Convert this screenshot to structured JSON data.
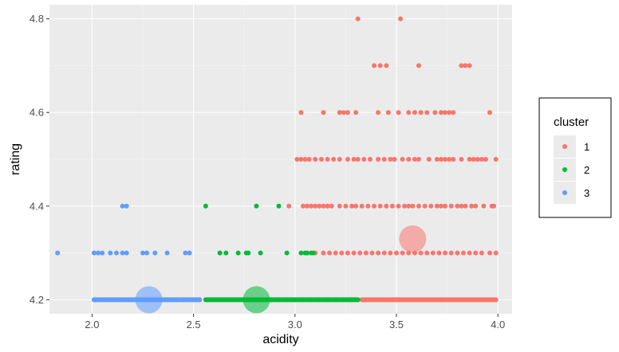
{
  "chart_data": {
    "type": "scatter",
    "xlabel": "acidity",
    "ylabel": "rating",
    "xlim": [
      1.79,
      4.07
    ],
    "ylim": [
      4.17,
      4.83
    ],
    "xticks": [
      "2.0",
      "2.5",
      "3.0",
      "3.5",
      "4.0"
    ],
    "yticks": [
      "4.2",
      "4.4",
      "4.6",
      "4.8"
    ],
    "grid": true,
    "legend": {
      "title": "cluster",
      "position": "right",
      "entries": [
        {
          "label": "1",
          "color": "#F8766D"
        },
        {
          "label": "2",
          "color": "#00BA38"
        },
        {
          "label": "3",
          "color": "#619CFF"
        }
      ]
    },
    "series": [
      {
        "name": "1",
        "color": "#F8766D",
        "points": [
          [
            3.31,
            4.8
          ],
          [
            3.52,
            4.8
          ],
          [
            3.39,
            4.7
          ],
          [
            3.42,
            4.7
          ],
          [
            3.45,
            4.7
          ],
          [
            3.61,
            4.7
          ],
          [
            3.82,
            4.7
          ],
          [
            3.84,
            4.7
          ],
          [
            3.86,
            4.7
          ],
          [
            3.03,
            4.6
          ],
          [
            3.14,
            4.6
          ],
          [
            3.22,
            4.6
          ],
          [
            3.24,
            4.6
          ],
          [
            3.26,
            4.6
          ],
          [
            3.3,
            4.6
          ],
          [
            3.41,
            4.6
          ],
          [
            3.46,
            4.6
          ],
          [
            3.51,
            4.6
          ],
          [
            3.56,
            4.6
          ],
          [
            3.59,
            4.6
          ],
          [
            3.62,
            4.6
          ],
          [
            3.65,
            4.6
          ],
          [
            3.69,
            4.6
          ],
          [
            3.72,
            4.6
          ],
          [
            3.74,
            4.6
          ],
          [
            3.76,
            4.6
          ],
          [
            3.78,
            4.6
          ],
          [
            3.96,
            4.6
          ],
          [
            3.01,
            4.5
          ],
          [
            3.03,
            4.5
          ],
          [
            3.05,
            4.5
          ],
          [
            3.07,
            4.5
          ],
          [
            3.1,
            4.5
          ],
          [
            3.13,
            4.5
          ],
          [
            3.16,
            4.5
          ],
          [
            3.19,
            4.5
          ],
          [
            3.22,
            4.5
          ],
          [
            3.26,
            4.5
          ],
          [
            3.29,
            4.5
          ],
          [
            3.31,
            4.5
          ],
          [
            3.34,
            4.5
          ],
          [
            3.37,
            4.5
          ],
          [
            3.41,
            4.5
          ],
          [
            3.44,
            4.5
          ],
          [
            3.47,
            4.5
          ],
          [
            3.49,
            4.5
          ],
          [
            3.53,
            4.5
          ],
          [
            3.56,
            4.5
          ],
          [
            3.59,
            4.5
          ],
          [
            3.61,
            4.5
          ],
          [
            3.66,
            4.5
          ],
          [
            3.7,
            4.5
          ],
          [
            3.72,
            4.5
          ],
          [
            3.74,
            4.5
          ],
          [
            3.76,
            4.5
          ],
          [
            3.78,
            4.5
          ],
          [
            3.82,
            4.5
          ],
          [
            3.86,
            4.5
          ],
          [
            3.88,
            4.5
          ],
          [
            3.9,
            4.5
          ],
          [
            3.92,
            4.5
          ],
          [
            3.94,
            4.5
          ],
          [
            3.99,
            4.5
          ],
          [
            2.97,
            4.4
          ],
          [
            3.04,
            4.4
          ],
          [
            3.06,
            4.4
          ],
          [
            3.08,
            4.4
          ],
          [
            3.1,
            4.4
          ],
          [
            3.12,
            4.4
          ],
          [
            3.14,
            4.4
          ],
          [
            3.16,
            4.4
          ],
          [
            3.18,
            4.4
          ],
          [
            3.22,
            4.4
          ],
          [
            3.25,
            4.4
          ],
          [
            3.28,
            4.4
          ],
          [
            3.3,
            4.4
          ],
          [
            3.33,
            4.4
          ],
          [
            3.36,
            4.4
          ],
          [
            3.39,
            4.4
          ],
          [
            3.42,
            4.4
          ],
          [
            3.45,
            4.4
          ],
          [
            3.48,
            4.4
          ],
          [
            3.51,
            4.4
          ],
          [
            3.54,
            4.4
          ],
          [
            3.56,
            4.4
          ],
          [
            3.58,
            4.4
          ],
          [
            3.61,
            4.4
          ],
          [
            3.64,
            4.4
          ],
          [
            3.67,
            4.4
          ],
          [
            3.7,
            4.4
          ],
          [
            3.72,
            4.4
          ],
          [
            3.74,
            4.4
          ],
          [
            3.77,
            4.4
          ],
          [
            3.8,
            4.4
          ],
          [
            3.82,
            4.4
          ],
          [
            3.84,
            4.4
          ],
          [
            3.87,
            4.4
          ],
          [
            3.89,
            4.4
          ],
          [
            3.93,
            4.4
          ],
          [
            3.97,
            4.4
          ],
          [
            3.98,
            4.4
          ],
          [
            3.1,
            4.3
          ],
          [
            3.14,
            4.3
          ],
          [
            3.17,
            4.3
          ],
          [
            3.2,
            4.3
          ],
          [
            3.23,
            4.3
          ],
          [
            3.26,
            4.3
          ],
          [
            3.29,
            4.3
          ],
          [
            3.32,
            4.3
          ],
          [
            3.35,
            4.3
          ],
          [
            3.38,
            4.3
          ],
          [
            3.41,
            4.3
          ],
          [
            3.44,
            4.3
          ],
          [
            3.47,
            4.3
          ],
          [
            3.5,
            4.3
          ],
          [
            3.53,
            4.3
          ],
          [
            3.56,
            4.3
          ],
          [
            3.59,
            4.3
          ],
          [
            3.62,
            4.3
          ],
          [
            3.65,
            4.3
          ],
          [
            3.68,
            4.3
          ],
          [
            3.71,
            4.3
          ],
          [
            3.74,
            4.3
          ],
          [
            3.77,
            4.3
          ],
          [
            3.8,
            4.3
          ],
          [
            3.83,
            4.3
          ],
          [
            3.86,
            4.3
          ],
          [
            3.89,
            4.3
          ],
          [
            3.92,
            4.3
          ],
          [
            3.96,
            4.3
          ],
          [
            3.99,
            4.3
          ],
          [
            3.33,
            4.2
          ],
          [
            3.36,
            4.2
          ],
          [
            3.4,
            4.2
          ],
          [
            3.44,
            4.2
          ],
          [
            3.48,
            4.2
          ],
          [
            3.52,
            4.2
          ],
          [
            3.56,
            4.2
          ],
          [
            3.6,
            4.2
          ],
          [
            3.64,
            4.2
          ],
          [
            3.68,
            4.2
          ],
          [
            3.72,
            4.2
          ],
          [
            3.76,
            4.2
          ],
          [
            3.8,
            4.2
          ],
          [
            3.84,
            4.2
          ],
          [
            3.88,
            4.2
          ],
          [
            3.92,
            4.2
          ],
          [
            3.96,
            4.2
          ],
          [
            3.99,
            4.2
          ]
        ]
      },
      {
        "name": "2",
        "color": "#00BA38",
        "points": [
          [
            2.56,
            4.4
          ],
          [
            2.81,
            4.4
          ],
          [
            2.92,
            4.4
          ],
          [
            2.63,
            4.3
          ],
          [
            2.66,
            4.3
          ],
          [
            2.72,
            4.3
          ],
          [
            2.76,
            4.3
          ],
          [
            2.77,
            4.3
          ],
          [
            2.83,
            4.3
          ],
          [
            2.96,
            4.3
          ],
          [
            3.03,
            4.3
          ],
          [
            3.05,
            4.3
          ],
          [
            3.06,
            4.3
          ],
          [
            3.08,
            4.3
          ],
          [
            3.09,
            4.3
          ],
          [
            2.56,
            4.2
          ],
          [
            2.6,
            4.2
          ],
          [
            2.64,
            4.2
          ],
          [
            2.68,
            4.2
          ],
          [
            2.72,
            4.2
          ],
          [
            2.76,
            4.2
          ],
          [
            2.8,
            4.2
          ],
          [
            2.84,
            4.2
          ],
          [
            2.88,
            4.2
          ],
          [
            2.92,
            4.2
          ],
          [
            2.96,
            4.2
          ],
          [
            3.0,
            4.2
          ],
          [
            3.04,
            4.2
          ],
          [
            3.08,
            4.2
          ],
          [
            3.12,
            4.2
          ],
          [
            3.16,
            4.2
          ],
          [
            3.2,
            4.2
          ],
          [
            3.24,
            4.2
          ],
          [
            3.28,
            4.2
          ],
          [
            3.31,
            4.2
          ]
        ]
      },
      {
        "name": "3",
        "color": "#619CFF",
        "points": [
          [
            2.15,
            4.4
          ],
          [
            2.17,
            4.4
          ],
          [
            1.83,
            4.3
          ],
          [
            2.01,
            4.3
          ],
          [
            2.03,
            4.3
          ],
          [
            2.05,
            4.3
          ],
          [
            2.09,
            4.3
          ],
          [
            2.12,
            4.3
          ],
          [
            2.15,
            4.3
          ],
          [
            2.17,
            4.3
          ],
          [
            2.25,
            4.3
          ],
          [
            2.27,
            4.3
          ],
          [
            2.31,
            4.3
          ],
          [
            2.37,
            4.3
          ],
          [
            2.46,
            4.3
          ],
          [
            2.48,
            4.3
          ],
          [
            2.01,
            4.2
          ],
          [
            2.05,
            4.2
          ],
          [
            2.09,
            4.2
          ],
          [
            2.13,
            4.2
          ],
          [
            2.17,
            4.2
          ],
          [
            2.21,
            4.2
          ],
          [
            2.25,
            4.2
          ],
          [
            2.29,
            4.2
          ],
          [
            2.33,
            4.2
          ],
          [
            2.37,
            4.2
          ],
          [
            2.41,
            4.2
          ],
          [
            2.45,
            4.2
          ],
          [
            2.49,
            4.2
          ],
          [
            2.53,
            4.2
          ]
        ]
      }
    ],
    "centroids": [
      {
        "cluster": "1",
        "x": 3.58,
        "y": 4.33,
        "color": "#F8766D"
      },
      {
        "cluster": "2",
        "x": 2.81,
        "y": 4.2,
        "color": "#00BA38"
      },
      {
        "cluster": "3",
        "x": 2.28,
        "y": 4.2,
        "color": "#619CFF"
      }
    ]
  }
}
